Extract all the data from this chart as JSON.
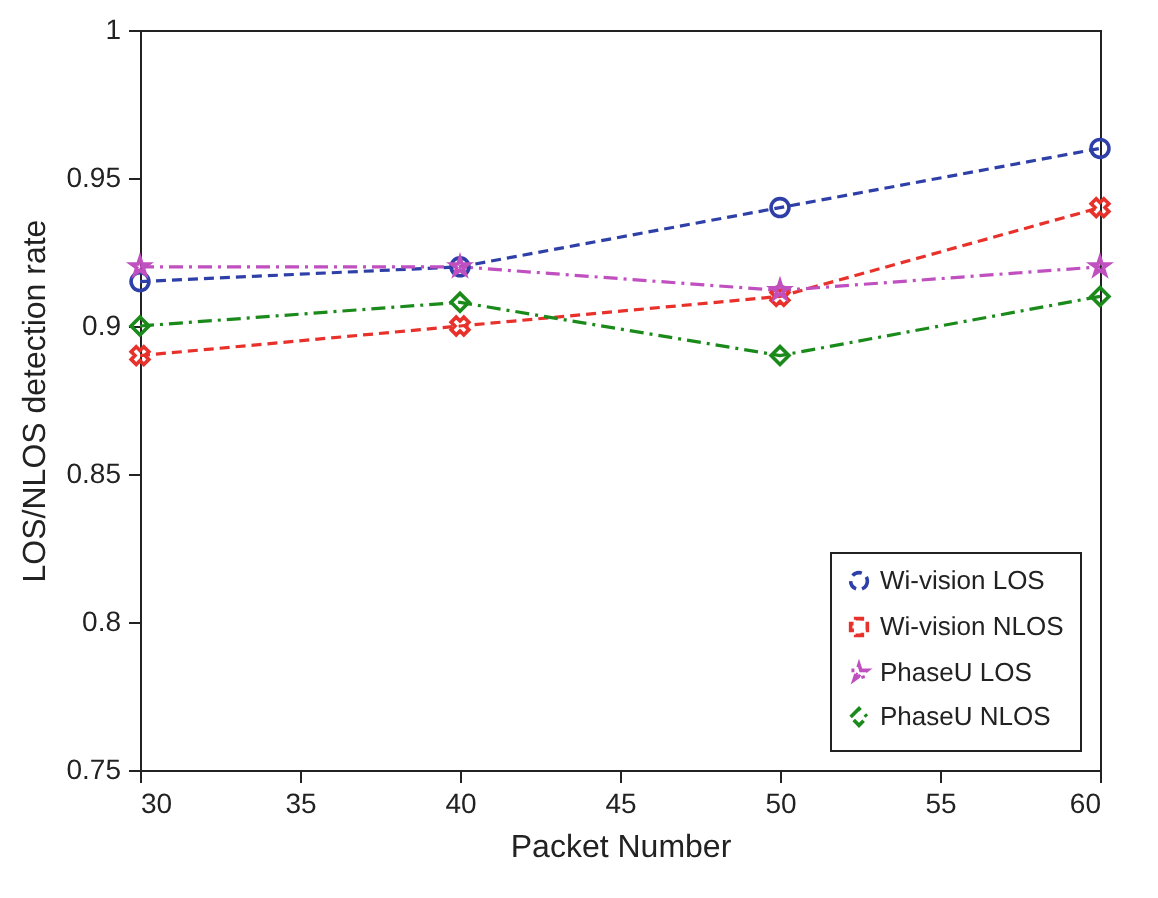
{
  "chart_data": {
    "type": "line",
    "xlabel": "Packet Number",
    "ylabel": "LOS/NLOS detection rate",
    "x": [
      30,
      40,
      50,
      60
    ],
    "series": [
      {
        "name": "Wi-vision LOS",
        "color": "#2e3fa8",
        "values": [
          0.915,
          0.92,
          0.94,
          0.96
        ],
        "marker": "circle",
        "line_style": "dashed"
      },
      {
        "name": "Wi-vision NLOS",
        "color": "#e8312a",
        "values": [
          0.89,
          0.9,
          0.91,
          0.94
        ],
        "marker": "cross",
        "line_style": "dashed"
      },
      {
        "name": "PhaseU LOS",
        "color": "#c04fc0",
        "values": [
          0.92,
          0.92,
          0.912,
          0.92
        ],
        "marker": "star",
        "line_style": "dashdot"
      },
      {
        "name": "PhaseU NLOS",
        "color": "#1a8a1a",
        "values": [
          0.9,
          0.908,
          0.89,
          0.91
        ],
        "marker": "diamond",
        "line_style": "dashdot"
      }
    ],
    "xlim": [
      30,
      60
    ],
    "xticks": [
      30,
      35,
      40,
      45,
      50,
      55,
      60
    ],
    "ylim": [
      0.75,
      1
    ],
    "yticks": [
      0.75,
      0.8,
      0.85,
      0.9,
      0.95,
      1
    ],
    "legend": "bottom right",
    "grid": false
  }
}
